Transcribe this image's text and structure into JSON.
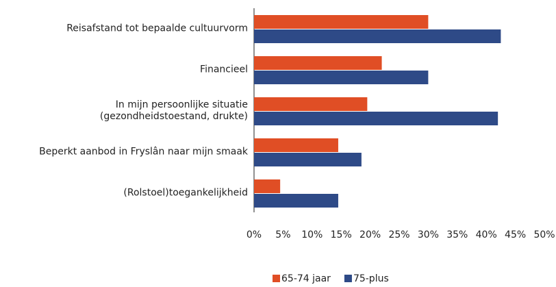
{
  "chart_data": {
    "type": "bar",
    "orientation": "horizontal",
    "categories": [
      "Reisafstand tot bepaalde cultuurvorm",
      "Financieel",
      "In mijn persoonlijke situatie (gezondheidstoestand, drukte)",
      "Beperkt aanbod in Fryslân naar mijn smaak",
      "(Rolstoel)toegankelijkheid"
    ],
    "series": [
      {
        "name": "65-74 jaar",
        "color": "#e04e25",
        "values": [
          30,
          22,
          19.5,
          14.5,
          4.5
        ]
      },
      {
        "name": "75-plus",
        "color": "#2e4a87",
        "values": [
          42.5,
          30,
          42,
          18.5,
          14.5
        ]
      }
    ],
    "xlim": [
      0,
      50
    ],
    "xticks": [
      {
        "value": 0,
        "label": "0%"
      },
      {
        "value": 5,
        "label": "5%"
      },
      {
        "value": 10,
        "label": "10%"
      },
      {
        "value": 15,
        "label": "15%"
      },
      {
        "value": 20,
        "label": "20%"
      },
      {
        "value": 25,
        "label": "25%"
      },
      {
        "value": 30,
        "label": "30%"
      },
      {
        "value": 35,
        "label": "35%"
      },
      {
        "value": 40,
        "label": "40%"
      },
      {
        "value": 45,
        "label": "45%"
      },
      {
        "value": 50,
        "label": "50%"
      }
    ],
    "legend": "bottom"
  }
}
